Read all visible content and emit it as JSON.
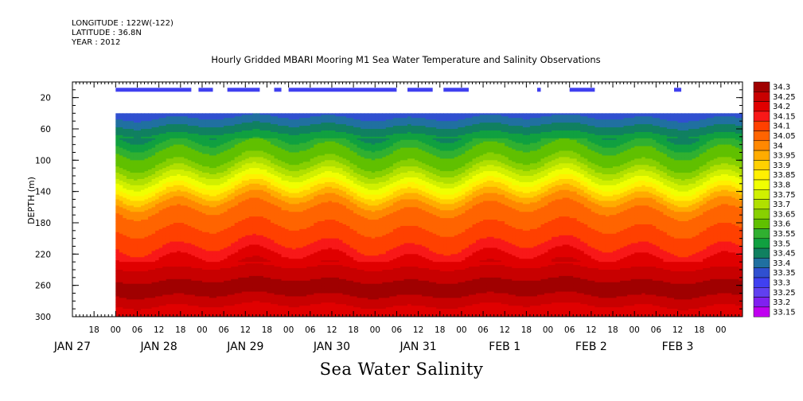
{
  "header": {
    "longitude": "LONGITUDE : 122W(-122)",
    "latitude": "LATITUDE : 36.8N",
    "year": "YEAR : 2012"
  },
  "chart_data": {
    "type": "heatmap",
    "title": "Hourly Gridded MBARI Mooring M1 Sea Water Temperature and Salinity Observations",
    "xlabel": "Sea Water Salinity",
    "ylabel": "DEPTH (m)",
    "ylim": [
      300,
      0
    ],
    "y_ticks": [
      20,
      60,
      100,
      140,
      180,
      220,
      260,
      300
    ],
    "x_hour_labels": [
      "18",
      "00",
      "06",
      "12",
      "18",
      "00",
      "06",
      "12",
      "18",
      "00",
      "06",
      "12",
      "18",
      "00",
      "06",
      "12",
      "18",
      "00",
      "06",
      "12",
      "18",
      "00",
      "06",
      "12",
      "18",
      "00",
      "06",
      "12",
      "18",
      "00"
    ],
    "x_hour_offsets": [
      -6,
      0,
      6,
      12,
      18,
      24,
      30,
      36,
      42,
      48,
      54,
      60,
      66,
      72,
      78,
      84,
      90,
      96,
      102,
      108,
      114,
      120,
      126,
      132,
      138,
      144,
      150,
      156,
      162,
      168
    ],
    "x_day_labels": [
      {
        "text": "JAN 27",
        "hours": -12
      },
      {
        "text": "JAN 28",
        "hours": 12
      },
      {
        "text": "JAN 29",
        "hours": 36
      },
      {
        "text": "JAN 30",
        "hours": 60
      },
      {
        "text": "JAN 31",
        "hours": 84
      },
      {
        "text": "FEB  1",
        "hours": 108
      },
      {
        "text": "FEB  2",
        "hours": 132
      },
      {
        "text": "FEB  3",
        "hours": 156
      }
    ],
    "x_range_hours": [
      -12,
      174
    ],
    "data_start_hours": 0,
    "data_top_depth": 40,
    "colorbar_labels": [
      "34.3",
      "34.25",
      "34.2",
      "34.15",
      "34.1",
      "34.05",
      "34",
      "33.95",
      "33.9",
      "33.85",
      "33.8",
      "33.75",
      "33.7",
      "33.65",
      "33.6",
      "33.55",
      "33.5",
      "33.45",
      "33.4",
      "33.35",
      "33.3",
      "33.25",
      "33.2",
      "33.15"
    ],
    "colorbar_colors": [
      "#a00000",
      "#c80000",
      "#e00000",
      "#f81818",
      "#ff4000",
      "#ff6400",
      "#ff8800",
      "#ffac00",
      "#ffd000",
      "#fff000",
      "#f0ff00",
      "#d0f000",
      "#b0e000",
      "#88d000",
      "#60c000",
      "#30b030",
      "#10a040",
      "#108060",
      "#2070a0",
      "#3050d0",
      "#4040f0",
      "#6040f0",
      "#8020f0",
      "#c000f0"
    ],
    "profile_depths": [
      40,
      50,
      60,
      70,
      80,
      90,
      100,
      110,
      120,
      130,
      140,
      150,
      160,
      170,
      180,
      190,
      200,
      210,
      220,
      230,
      240,
      250,
      260,
      270,
      280,
      290,
      300
    ],
    "profile_salinity": [
      33.35,
      33.4,
      33.45,
      33.5,
      33.55,
      33.6,
      33.62,
      33.68,
      33.75,
      33.82,
      33.9,
      33.97,
      34.02,
      34.05,
      34.07,
      34.08,
      34.1,
      34.13,
      34.17,
      34.2,
      34.24,
      34.27,
      34.29,
      34.28,
      34.25,
      34.2,
      34.2
    ],
    "surface_obs_hours": [
      [
        0,
        21
      ],
      [
        23,
        27
      ],
      [
        31,
        40
      ],
      [
        44,
        46
      ],
      [
        48,
        78
      ],
      [
        81,
        88
      ],
      [
        91,
        98
      ],
      [
        117,
        118
      ],
      [
        126,
        133
      ],
      [
        155,
        157
      ]
    ],
    "surface_obs_depth": 10,
    "surface_obs_value": 33.3
  }
}
